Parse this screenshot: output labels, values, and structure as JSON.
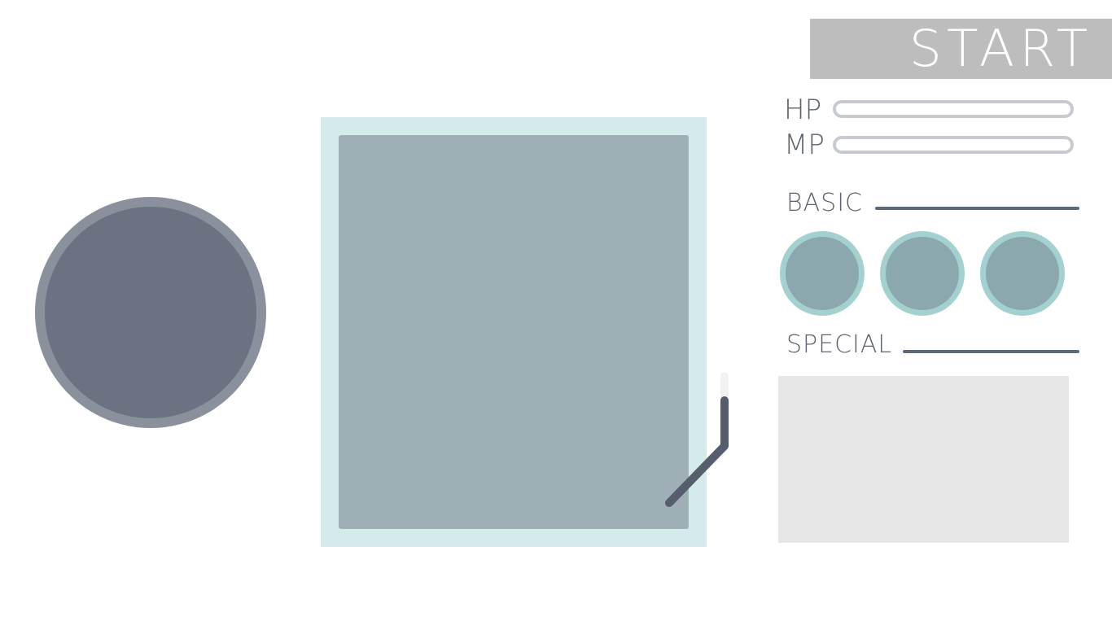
{
  "start_button": {
    "label": "START"
  },
  "stats": {
    "hp": {
      "label": "HP",
      "value_fraction": 0
    },
    "mp": {
      "label": "MP",
      "value_fraction": 0
    }
  },
  "sections": {
    "basic": {
      "label": "BASIC",
      "slots": 3
    },
    "special": {
      "label": "SPECIAL"
    }
  },
  "colors": {
    "start_bg": "#bdbdbd",
    "orb_outer": "#8a919c",
    "orb_inner": "#6b7281",
    "panel_frame": "#d4eaeb",
    "panel_inner": "#9eafb5",
    "lever": "#565d6d",
    "skill_ring": "#a4d0d0",
    "skill_core": "#8aa8ad",
    "special_box": "#e6e6e6",
    "label_text": "#5d6470"
  },
  "icons": {
    "lever": "lever-icon"
  }
}
